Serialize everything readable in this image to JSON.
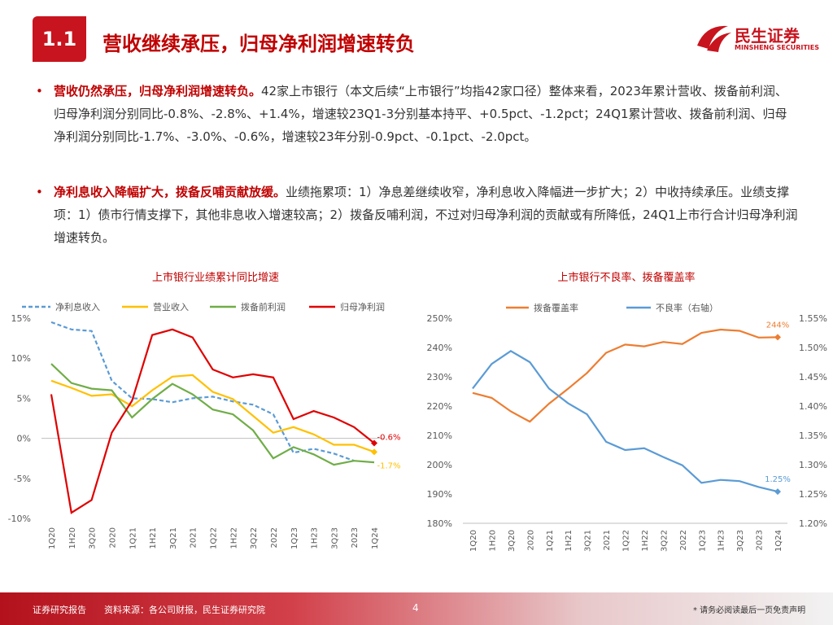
{
  "header": {
    "number": "1.1",
    "title": "营收继续承压，归母净利润增速转负",
    "logo": "民生证券",
    "logo_en": "MINSHENG SECURITIES"
  },
  "bullets": [
    {
      "lead": "营收仍然承压，归母净利润增速转负。",
      "text": "42家上市银行（本文后续“上市银行”均指42家口径）整体来看，2023年累计营收、拨备前利润、归母净利润分别同比-0.8%、-2.8%、+1.4%，增速较23Q1-3分别基本持平、+0.5pct、-1.2pct；24Q1累计营收、拨备前利润、归母净利润分别同比-1.7%、-3.0%、-0.6%，增速较23年分别-0.9pct、-0.1pct、-2.0pct。"
    },
    {
      "lead": "净利息收入降幅扩大，拨备反哺贡献放缓。",
      "text": "业绩拖累项：1）净息差继续收窄，净利息收入降幅进一步扩大；2）中收持续承压。业绩支撑项：1）债市行情支撑下，其他非息收入增速较高；2）拨备反哺利润，不过对归母净利润的贡献或有所降低，24Q1上市行合计归母净利润增速转负。"
    }
  ],
  "chart_data": [
    {
      "type": "line",
      "title": "上市银行业绩累计同比增速",
      "categories": [
        "1Q20",
        "1H20",
        "3Q20",
        "2020",
        "1Q21",
        "1H21",
        "3Q21",
        "2021",
        "1Q22",
        "1H22",
        "3Q22",
        "2022",
        "1Q23",
        "1H23",
        "3Q23",
        "2023",
        "1Q24"
      ],
      "ylim": [
        -10,
        15
      ],
      "yticks": [
        {
          "value": -10,
          "label": "-10%"
        },
        {
          "value": -5,
          "label": "-5%"
        },
        {
          "value": 0,
          "label": "0%"
        },
        {
          "value": 5,
          "label": "5%"
        },
        {
          "value": 10,
          "label": "10%"
        },
        {
          "value": 15,
          "label": "15%"
        }
      ],
      "grid": false,
      "series": [
        {
          "name": "净利息收入",
          "color": "#5b9bd5",
          "dashed": true,
          "values": [
            14.5,
            13.6,
            13.4,
            7.2,
            5.0,
            4.9,
            4.5,
            5.0,
            5.2,
            4.6,
            4.2,
            3.0,
            -1.8,
            -1.3,
            -1.9,
            -2.8,
            null
          ]
        },
        {
          "name": "营业收入",
          "color": "#ffc000",
          "values": [
            7.2,
            6.3,
            5.3,
            5.5,
            4.0,
            6.0,
            7.7,
            7.9,
            5.8,
            4.9,
            2.8,
            0.7,
            1.4,
            0.5,
            -0.8,
            -0.8,
            -1.7
          ],
          "value_labels": [
            null,
            null,
            null,
            null,
            null,
            null,
            null,
            null,
            null,
            null,
            null,
            null,
            null,
            null,
            null,
            null,
            "-1.7%"
          ]
        },
        {
          "name": "拨备前利润",
          "color": "#70ad47",
          "values": [
            9.3,
            6.9,
            6.2,
            6.0,
            2.6,
            4.9,
            6.8,
            5.5,
            3.6,
            3.0,
            1.0,
            -2.5,
            -1.1,
            -2.0,
            -3.3,
            -2.8,
            -3.0
          ]
        },
        {
          "name": "归母净利润",
          "color": "#e00000",
          "values": [
            5.5,
            -9.3,
            -7.7,
            0.7,
            4.7,
            12.9,
            13.6,
            12.6,
            8.6,
            7.6,
            8.0,
            7.6,
            2.4,
            3.4,
            2.6,
            1.4,
            -0.6
          ],
          "value_labels": [
            null,
            null,
            null,
            null,
            null,
            null,
            null,
            null,
            null,
            null,
            null,
            null,
            null,
            null,
            null,
            null,
            "-0.6%"
          ]
        }
      ]
    },
    {
      "type": "line",
      "title": "上市银行不良率、拨备覆盖率",
      "categories": [
        "1Q20",
        "1H20",
        "3Q20",
        "2020",
        "1Q21",
        "1H21",
        "3Q21",
        "2021",
        "1Q22",
        "1H22",
        "3Q22",
        "2022",
        "1Q23",
        "1H23",
        "3Q23",
        "2023",
        "1Q24"
      ],
      "ylim": [
        180,
        250
      ],
      "yticks": [
        {
          "value": 180,
          "label": "180%"
        },
        {
          "value": 190,
          "label": "190%"
        },
        {
          "value": 200,
          "label": "200%"
        },
        {
          "value": 210,
          "label": "210%"
        },
        {
          "value": 220,
          "label": "220%"
        },
        {
          "value": 230,
          "label": "230%"
        },
        {
          "value": 240,
          "label": "240%"
        },
        {
          "value": 250,
          "label": "250%"
        }
      ],
      "y2lim": [
        1.2,
        1.55
      ],
      "y2ticks": [
        {
          "value": 1.2,
          "label": "1.20%"
        },
        {
          "value": 1.25,
          "label": "1.25%"
        },
        {
          "value": 1.3,
          "label": "1.30%"
        },
        {
          "value": 1.35,
          "label": "1.35%"
        },
        {
          "value": 1.4,
          "label": "1.40%"
        },
        {
          "value": 1.45,
          "label": "1.45%"
        },
        {
          "value": 1.5,
          "label": "1.50%"
        },
        {
          "value": 1.55,
          "label": "1.55%"
        }
      ],
      "grid": false,
      "series": [
        {
          "name": "拨备覆盖率",
          "color": "#ed7d31",
          "values": [
            224.5,
            222.8,
            218.2,
            214.7,
            220.8,
            225.9,
            231.3,
            238.2,
            241.0,
            240.4,
            241.9,
            241.2,
            245.0,
            246.1,
            245.7,
            243.4,
            243.5
          ],
          "value_labels": [
            null,
            null,
            null,
            null,
            null,
            null,
            null,
            null,
            null,
            null,
            null,
            null,
            null,
            null,
            null,
            null,
            "244%"
          ]
        },
        {
          "name": "不良率（右轴）",
          "color": "#5b9bd5",
          "axis": "y2",
          "values": [
            1.43,
            1.472,
            1.494,
            1.475,
            1.43,
            1.405,
            1.386,
            1.339,
            1.325,
            1.328,
            1.313,
            1.299,
            1.269,
            1.274,
            1.272,
            1.262,
            1.254
          ],
          "value_labels": [
            null,
            null,
            null,
            null,
            null,
            null,
            null,
            null,
            null,
            null,
            null,
            null,
            null,
            null,
            null,
            null,
            "1.25%"
          ]
        }
      ]
    }
  ],
  "footer": {
    "label": "证券研究报告",
    "source": "资料来源：各公司财报，民生证券研究院",
    "page": "4",
    "disclaimer": "* 请务必阅读最后一页免责声明"
  }
}
